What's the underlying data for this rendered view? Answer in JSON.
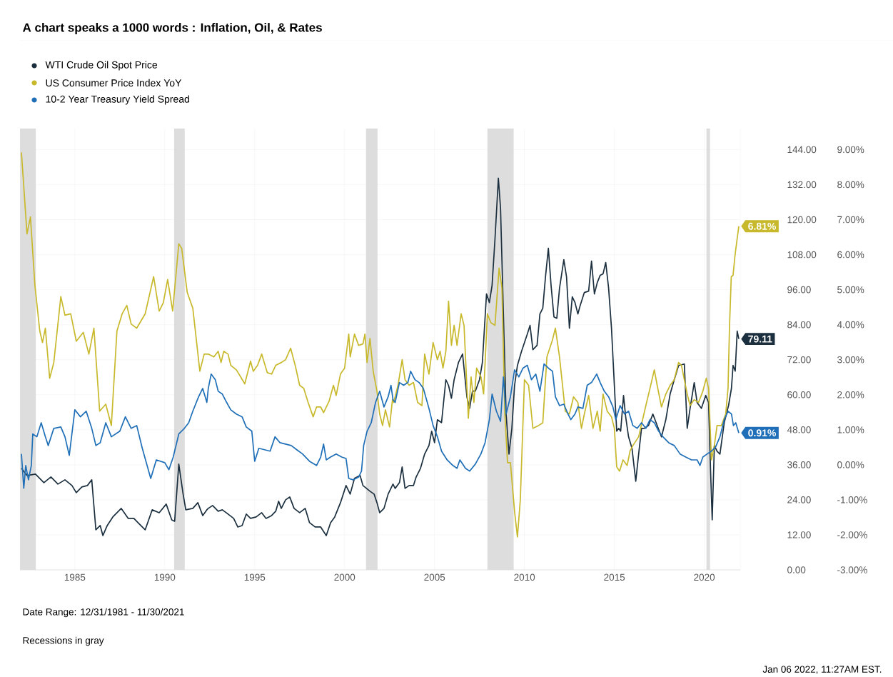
{
  "chart_data": {
    "type": "line",
    "title": "A chart speaks a 1000 words : Inflation, Oil, & Rates",
    "xlim": [
      1981.95,
      2022.0
    ],
    "xticks": [
      1985,
      1990,
      1995,
      2000,
      2005,
      2010,
      2015,
      2020
    ],
    "ylim": [
      0,
      151.2
    ],
    "yticks": [
      {
        "value": 0,
        "label": "0.00"
      },
      {
        "value": 12,
        "label": "12.00"
      },
      {
        "value": 24,
        "label": "24.00"
      },
      {
        "value": 36,
        "label": "36.00"
      },
      {
        "value": 48,
        "label": "48.00"
      },
      {
        "value": 60,
        "label": "60.00"
      },
      {
        "value": 72,
        "label": "72.00"
      },
      {
        "value": 84,
        "label": "84.00"
      },
      {
        "value": 96,
        "label": "96.00"
      },
      {
        "value": 108,
        "label": "108.00"
      },
      {
        "value": 120,
        "label": "120.00"
      },
      {
        "value": 132,
        "label": "132.00"
      },
      {
        "value": 144,
        "label": "144.00"
      }
    ],
    "y2lim": [
      -3,
      9.6
    ],
    "y2ticks": [
      {
        "value": -3,
        "label": "-3.00%"
      },
      {
        "value": -2,
        "label": "-2.00%"
      },
      {
        "value": -1,
        "label": "-1.00%"
      },
      {
        "value": 0,
        "label": "0.00%"
      },
      {
        "value": 1,
        "label": "1.00%"
      },
      {
        "value": 2,
        "label": "2.00%"
      },
      {
        "value": 3,
        "label": "3.00%"
      },
      {
        "value": 4,
        "label": "4.00%"
      },
      {
        "value": 5,
        "label": "5.00%"
      },
      {
        "value": 6,
        "label": "6.00%"
      },
      {
        "value": 7,
        "label": "7.00%"
      },
      {
        "value": 8,
        "label": "8.00%"
      },
      {
        "value": 9,
        "label": "9.00%"
      }
    ],
    "grid": true,
    "legend": "top left",
    "bands": [
      {
        "axis": "x",
        "from": 1981.95,
        "to": 1982.83,
        "color": "#dddddd"
      },
      {
        "axis": "x",
        "from": 1990.52,
        "to": 1991.11,
        "color": "#dddddd"
      },
      {
        "axis": "x",
        "from": 2001.19,
        "to": 2001.83,
        "color": "#dddddd"
      },
      {
        "axis": "x",
        "from": 2007.94,
        "to": 2009.4,
        "color": "#dddddd"
      },
      {
        "axis": "x",
        "from": 2020.12,
        "to": 2020.32,
        "color": "#dddddd"
      }
    ],
    "annotations": [
      "Date Range: 12/31/1981 - 11/30/2021",
      "Recessions in gray",
      "Jan 06 2022, 11:27AM EST."
    ],
    "series": [
      {
        "name": "WTI Crude Oil Spot Price",
        "color": "#1b2f3f",
        "axis": "y",
        "x": [
          1982.03,
          1982.34,
          1982.81,
          1983.28,
          1983.67,
          1984.06,
          1984.45,
          1984.84,
          1985.08,
          1985.39,
          1985.7,
          1985.94,
          1986.17,
          1986.41,
          1986.56,
          1986.8,
          1987.11,
          1987.58,
          1987.97,
          1988.28,
          1988.59,
          1988.91,
          1989.3,
          1989.69,
          1990.08,
          1990.39,
          1990.55,
          1990.78,
          1991.02,
          1991.17,
          1991.56,
          1991.84,
          1992.11,
          1992.34,
          1992.42,
          1992.66,
          1992.97,
          1993.2,
          1993.52,
          1993.83,
          1994.06,
          1994.3,
          1994.53,
          1994.77,
          1995.08,
          1995.39,
          1995.63,
          1995.94,
          1996.17,
          1996.33,
          1996.48,
          1996.72,
          1996.95,
          1997.19,
          1997.5,
          1997.81,
          1998.05,
          1998.36,
          1998.67,
          1998.98,
          1999.22,
          1999.45,
          1999.77,
          2000.08,
          2000.31,
          2000.55,
          2000.86,
          2001.02,
          2001.41,
          2001.64,
          2001.8,
          2001.95,
          2002.19,
          2002.42,
          2002.69,
          2002.81,
          2003.05,
          2003.2,
          2003.36,
          2003.59,
          2003.83,
          2003.98,
          2004.22,
          2004.45,
          2004.69,
          2004.84,
          2005.0,
          2005.16,
          2005.39,
          2005.63,
          2005.78,
          2005.94,
          2006.09,
          2006.33,
          2006.56,
          2006.8,
          2006.95,
          2007.11,
          2007.27,
          2007.5,
          2007.66,
          2007.89,
          2008.05,
          2008.2,
          2008.36,
          2008.55,
          2008.67,
          2008.83,
          2008.98,
          2009.14,
          2009.3,
          2009.45,
          2009.61,
          2009.84,
          2010.0,
          2010.16,
          2010.31,
          2010.47,
          2010.7,
          2010.86,
          2011.02,
          2011.17,
          2011.33,
          2011.48,
          2011.64,
          2011.8,
          2011.95,
          2012.19,
          2012.34,
          2012.5,
          2012.66,
          2012.81,
          2012.97,
          2013.1,
          2013.33,
          2013.57,
          2013.73,
          2013.89,
          2014.05,
          2014.21,
          2014.37,
          2014.52,
          2014.68,
          2014.84,
          2015.0,
          2015.13,
          2015.24,
          2015.35,
          2015.51,
          2015.63,
          2015.79,
          2015.98,
          2016.19,
          2016.35,
          2016.51,
          2016.67,
          2016.9,
          2017.14,
          2017.38,
          2017.62,
          2017.86,
          2018.1,
          2018.33,
          2018.57,
          2018.89,
          2019.05,
          2019.21,
          2019.44,
          2019.6,
          2019.84,
          2020.08,
          2020.24,
          2020.35,
          2020.44,
          2020.56,
          2020.71,
          2020.87,
          2021.11,
          2021.35,
          2021.51,
          2021.6,
          2021.72,
          2021.83,
          2021.92
        ],
        "values": [
          34.78,
          32.33,
          32.82,
          29.88,
          31.84,
          29.39,
          30.86,
          28.9,
          26.45,
          28.41,
          28.9,
          30.86,
          13.71,
          15.18,
          11.76,
          15.18,
          18.12,
          21.06,
          17.63,
          17.63,
          15.67,
          13.71,
          20.57,
          19.59,
          22.53,
          17.14,
          16.65,
          36.25,
          25.96,
          20.57,
          21.06,
          23.02,
          18.61,
          20.57,
          21.06,
          22.04,
          20.08,
          20.57,
          19.1,
          17.63,
          14.69,
          15.18,
          19.1,
          17.63,
          18.12,
          19.59,
          17.63,
          18.61,
          20.08,
          23.51,
          21.06,
          24.0,
          24.98,
          21.06,
          19.59,
          21.06,
          16.16,
          14.69,
          14.69,
          11.76,
          16.16,
          18.12,
          23.02,
          28.9,
          25.96,
          31.35,
          32.33,
          28.9,
          26.94,
          25.96,
          23.02,
          19.59,
          21.06,
          25.96,
          29.39,
          27.92,
          29.88,
          35.27,
          27.92,
          28.9,
          28.9,
          31.84,
          34.78,
          39.67,
          42.61,
          47.51,
          43.59,
          51.43,
          50.45,
          65.14,
          63.18,
          58.78,
          65.14,
          71.02,
          73.96,
          59.27,
          55.35,
          61.23,
          61.23,
          65.14,
          71.02,
          94.53,
          91.59,
          97.47,
          113.14,
          134.2,
          123.92,
          87.67,
          53.39,
          39.67,
          48.49,
          63.18,
          70.04,
          74.94,
          77.88,
          80.82,
          83.76,
          75.43,
          76.9,
          87.67,
          89.63,
          100.41,
          110.2,
          97.47,
          86.69,
          86.2,
          96.49,
          106.29,
          100.41,
          82.78,
          93.55,
          91.59,
          87.67,
          90.61,
          95.02,
          95.51,
          105.8,
          94.53,
          98.45,
          100.9,
          101.39,
          105.31,
          96.49,
          82.78,
          63.18,
          47.51,
          48.49,
          47.51,
          59.76,
          52.41,
          45.55,
          41.63,
          30.37,
          39.67,
          48.49,
          48.49,
          49.47,
          53.39,
          49.47,
          45.55,
          51.43,
          60.24,
          65.14,
          70.04,
          70.53,
          48.49,
          55.35,
          64.16,
          57.31,
          55.35,
          59.76,
          57.31,
          33.8,
          17.14,
          42.61,
          40.65,
          39.67,
          50.45,
          56.33,
          62.2,
          70.04,
          68.08,
          81.8,
          79.11
        ],
        "value_labels": [
          null,
          null,
          null,
          null,
          null,
          null,
          null,
          null,
          null,
          null,
          null,
          null,
          null,
          null,
          null,
          null,
          null,
          null,
          null,
          null,
          null,
          null,
          null,
          null,
          null,
          null,
          null,
          null,
          null,
          null,
          null,
          null,
          null,
          null,
          null,
          null,
          null,
          null,
          null,
          null,
          null,
          null,
          null,
          null,
          null,
          null,
          null,
          null,
          null,
          null,
          null,
          null,
          null,
          null,
          null,
          null,
          null,
          null,
          null,
          null,
          null,
          null,
          null,
          null,
          null,
          null,
          null,
          null,
          null,
          null,
          null,
          null,
          null,
          null,
          null,
          null,
          null,
          null,
          null,
          null,
          null,
          null,
          null,
          null,
          null,
          null,
          null,
          null,
          null,
          null,
          null,
          null,
          null,
          null,
          null,
          null,
          null,
          null,
          null,
          null,
          null,
          null,
          null,
          null,
          null,
          null,
          null,
          null,
          null,
          null,
          null,
          null,
          null,
          null,
          null,
          null,
          null,
          null,
          null,
          null,
          null,
          null,
          null,
          null,
          null,
          null,
          null,
          null,
          null,
          null,
          null,
          null,
          null,
          null,
          null,
          null,
          null,
          null,
          null,
          null,
          null,
          null,
          null,
          null,
          null,
          null,
          null,
          null,
          null,
          null,
          null,
          null,
          null,
          null,
          null,
          null,
          null,
          null,
          null,
          null,
          null,
          null,
          null,
          null,
          null,
          null,
          null,
          null,
          null,
          null,
          null,
          null,
          null,
          null,
          null,
          null,
          null,
          null,
          null,
          null,
          null,
          null,
          null,
          "79.11"
        ]
      },
      {
        "name": "US Consumer Price Index YoY",
        "color": "#c8b92c",
        "axis": "y2",
        "x": [
          1982.03,
          1982.34,
          1982.53,
          1982.78,
          1983.05,
          1983.2,
          1983.36,
          1983.6,
          1983.83,
          1984.22,
          1984.45,
          1984.77,
          1985.08,
          1985.47,
          1985.78,
          1986.06,
          1986.38,
          1986.72,
          1987.03,
          1987.34,
          1987.63,
          1987.89,
          1988.13,
          1988.44,
          1988.91,
          1989.38,
          1989.69,
          1989.92,
          1990.16,
          1990.44,
          1990.78,
          1990.94,
          1991.25,
          1991.56,
          1991.95,
          1992.19,
          1992.42,
          1992.73,
          1992.97,
          1993.13,
          1993.28,
          1993.52,
          1993.67,
          1993.98,
          1994.22,
          1994.45,
          1994.77,
          1994.92,
          1995.16,
          1995.39,
          1995.7,
          1995.94,
          1996.17,
          1996.48,
          1996.72,
          1997.0,
          1997.27,
          1997.5,
          1997.73,
          1997.97,
          1998.25,
          1998.44,
          1998.67,
          1998.83,
          1999.14,
          1999.38,
          1999.53,
          1999.77,
          2000.0,
          2000.23,
          2000.31,
          2000.55,
          2000.78,
          2001.02,
          2001.13,
          2001.25,
          2001.41,
          2001.59,
          2001.8,
          2001.95,
          2002.11,
          2002.27,
          2002.5,
          2002.66,
          2002.73,
          2002.97,
          2003.2,
          2003.36,
          2003.59,
          2003.83,
          2004.06,
          2004.3,
          2004.45,
          2004.69,
          2004.92,
          2005.16,
          2005.31,
          2005.47,
          2005.63,
          2005.78,
          2005.94,
          2006.09,
          2006.25,
          2006.48,
          2006.64,
          2006.88,
          2007.03,
          2007.19,
          2007.34,
          2007.58,
          2007.73,
          2007.94,
          2008.13,
          2008.36,
          2008.59,
          2008.75,
          2008.91,
          2009.06,
          2009.22,
          2009.45,
          2009.61,
          2009.77,
          2010.0,
          2010.23,
          2010.47,
          2010.78,
          2011.02,
          2011.25,
          2011.56,
          2011.72,
          2011.95,
          2012.27,
          2012.5,
          2012.73,
          2012.97,
          2013.17,
          2013.33,
          2013.57,
          2013.81,
          2014.05,
          2014.21,
          2014.37,
          2014.6,
          2014.84,
          2015.0,
          2015.13,
          2015.29,
          2015.48,
          2015.71,
          2015.87,
          2016.03,
          2016.35,
          2016.75,
          2016.98,
          2017.22,
          2017.38,
          2017.62,
          2017.86,
          2018.1,
          2018.33,
          2018.57,
          2018.73,
          2018.89,
          2019.05,
          2019.21,
          2019.44,
          2019.68,
          2019.92,
          2020.11,
          2020.24,
          2020.4,
          2020.56,
          2020.71,
          2020.95,
          2021.19,
          2021.32,
          2021.4,
          2021.5,
          2021.6,
          2021.7,
          2021.8,
          2021.92
        ],
        "values": [
          8.92,
          6.59,
          7.08,
          5.12,
          3.82,
          3.49,
          3.9,
          2.47,
          2.92,
          4.8,
          4.27,
          4.31,
          3.53,
          3.78,
          3.16,
          3.9,
          1.53,
          1.73,
          1.12,
          3.82,
          4.31,
          4.55,
          4.02,
          3.9,
          4.31,
          5.37,
          4.39,
          4.63,
          5.29,
          4.39,
          6.31,
          6.18,
          4.92,
          4.47,
          2.67,
          3.16,
          3.16,
          3.08,
          3.24,
          2.92,
          3.24,
          3.16,
          2.84,
          2.71,
          2.51,
          2.31,
          2.96,
          2.67,
          2.84,
          3.16,
          2.63,
          2.59,
          2.84,
          2.92,
          3.0,
          3.33,
          2.8,
          2.27,
          2.18,
          1.78,
          1.37,
          1.65,
          1.65,
          1.49,
          1.82,
          2.27,
          1.98,
          2.59,
          2.76,
          3.73,
          3.08,
          3.73,
          3.41,
          3.45,
          3.73,
          2.92,
          3.61,
          2.67,
          2.1,
          1.45,
          1.12,
          1.57,
          1.08,
          1.86,
          1.78,
          2.27,
          3.0,
          2.43,
          2.27,
          2.35,
          1.78,
          1.69,
          3.16,
          2.59,
          3.49,
          3.0,
          3.24,
          2.76,
          3.24,
          4.67,
          3.41,
          3.98,
          3.41,
          4.31,
          3.98,
          1.33,
          2.51,
          1.78,
          2.76,
          2.51,
          2.02,
          4.31,
          4.06,
          3.98,
          5.61,
          5.04,
          1.45,
          0.06,
          0.06,
          -1.33,
          -2.06,
          -1.0,
          2.43,
          2.27,
          1.04,
          1.12,
          1.2,
          3.08,
          3.57,
          3.9,
          3.08,
          1.53,
          1.45,
          1.94,
          1.78,
          1.04,
          1.45,
          1.98,
          1.04,
          1.53,
          0.96,
          2.02,
          1.53,
          1.37,
          1.04,
          -0.06,
          -0.18,
          0.14,
          -0.02,
          0.39,
          0.55,
          0.8,
          1.69,
          2.18,
          2.71,
          2.27,
          1.65,
          2.02,
          2.27,
          2.43,
          2.92,
          2.84,
          2.43,
          2.02,
          1.69,
          1.86,
          1.78,
          2.1,
          2.47,
          2.18,
          0.14,
          0.55,
          1.12,
          1.12,
          1.45,
          2.18,
          3.9,
          5.37,
          5.41,
          5.94,
          6.35,
          6.81
        ],
        "value_labels": [
          null,
          null,
          null,
          null,
          null,
          null,
          null,
          null,
          null,
          null,
          null,
          null,
          null,
          null,
          null,
          null,
          null,
          null,
          null,
          null,
          null,
          null,
          null,
          null,
          null,
          null,
          null,
          null,
          null,
          null,
          null,
          null,
          null,
          null,
          null,
          null,
          null,
          null,
          null,
          null,
          null,
          null,
          null,
          null,
          null,
          null,
          null,
          null,
          null,
          null,
          null,
          null,
          null,
          null,
          null,
          null,
          null,
          null,
          null,
          null,
          null,
          null,
          null,
          null,
          null,
          null,
          null,
          null,
          null,
          null,
          null,
          null,
          null,
          null,
          null,
          null,
          null,
          null,
          null,
          null,
          null,
          null,
          null,
          null,
          null,
          null,
          null,
          null,
          null,
          null,
          null,
          null,
          null,
          null,
          null,
          null,
          null,
          null,
          null,
          null,
          null,
          null,
          null,
          null,
          null,
          null,
          null,
          null,
          null,
          null,
          null,
          null,
          null,
          null,
          null,
          null,
          null,
          null,
          null,
          null,
          null,
          null,
          null,
          null,
          null,
          null,
          null,
          null,
          null,
          null,
          null,
          null,
          null,
          null,
          null,
          null,
          null,
          null,
          null,
          null,
          null,
          null,
          null,
          null,
          null,
          null,
          null,
          null,
          null,
          null,
          null,
          null,
          null,
          null,
          null,
          null,
          null,
          null,
          null,
          null,
          null,
          null,
          null,
          null,
          null,
          null,
          null,
          null,
          null,
          null,
          null,
          null,
          null,
          null,
          null,
          null,
          null,
          null,
          null,
          null,
          null,
          "6.81%"
        ]
      },
      {
        "name": "10-2 Year Treasury Yield Spread",
        "color": "#1f6fb8",
        "axis": "y2",
        "x": [
          1982.03,
          1982.16,
          1982.27,
          1982.42,
          1982.58,
          1982.66,
          1982.89,
          1983.13,
          1983.36,
          1983.52,
          1983.83,
          1984.22,
          1984.45,
          1984.69,
          1985.0,
          1985.31,
          1985.63,
          1985.94,
          1986.17,
          1986.41,
          1986.72,
          1987.03,
          1987.5,
          1987.81,
          1988.13,
          1988.44,
          1988.75,
          1989.22,
          1989.53,
          1990.0,
          1990.23,
          1990.47,
          1990.78,
          1991.09,
          1991.33,
          1991.56,
          1991.88,
          1992.11,
          1992.34,
          1992.42,
          1992.58,
          1992.81,
          1992.97,
          1993.2,
          1993.44,
          1993.67,
          1993.98,
          1994.3,
          1994.53,
          1994.84,
          1995.0,
          1995.23,
          1995.55,
          1995.86,
          1996.13,
          1996.41,
          1996.72,
          1997.03,
          1997.34,
          1997.66,
          1998.05,
          1998.44,
          1998.67,
          1998.83,
          1998.98,
          1999.22,
          1999.53,
          1999.84,
          2000.08,
          2000.23,
          2000.47,
          2000.78,
          2000.94,
          2001.06,
          2001.25,
          2001.48,
          2001.72,
          2001.95,
          2002.19,
          2002.42,
          2002.58,
          2002.69,
          2002.81,
          2003.05,
          2003.28,
          2003.52,
          2003.67,
          2003.91,
          2004.14,
          2004.38,
          2004.69,
          2004.92,
          2005.16,
          2005.39,
          2005.7,
          2006.02,
          2006.25,
          2006.41,
          2006.72,
          2006.95,
          2007.27,
          2007.58,
          2007.81,
          2008.05,
          2008.2,
          2008.44,
          2008.67,
          2008.83,
          2008.98,
          2009.22,
          2009.45,
          2009.69,
          2009.92,
          2010.16,
          2010.39,
          2010.63,
          2010.86,
          2011.09,
          2011.33,
          2011.56,
          2011.72,
          2011.95,
          2012.19,
          2012.42,
          2012.58,
          2012.81,
          2012.97,
          2013.25,
          2013.49,
          2013.73,
          2014.02,
          2014.21,
          2014.44,
          2014.68,
          2014.92,
          2015.08,
          2015.32,
          2015.56,
          2015.79,
          2016.03,
          2016.27,
          2016.51,
          2016.75,
          2016.98,
          2017.22,
          2017.46,
          2017.7,
          2018.02,
          2018.33,
          2018.65,
          2018.97,
          2019.29,
          2019.6,
          2019.76,
          2019.92,
          2020.16,
          2020.4,
          2020.63,
          2020.87,
          2021.11,
          2021.32,
          2021.51,
          2021.62,
          2021.75,
          2021.92
        ],
        "values": [
          0.31,
          -0.67,
          -0.02,
          -0.43,
          -0.02,
          0.88,
          0.8,
          1.2,
          0.8,
          0.55,
          1.04,
          1.08,
          0.8,
          0.27,
          1.57,
          1.37,
          1.53,
          1.04,
          0.55,
          0.63,
          1.2,
          0.8,
          0.96,
          1.37,
          1.04,
          1.12,
          0.47,
          -0.39,
          0.14,
          0.06,
          -0.14,
          0.22,
          0.88,
          1.04,
          1.2,
          1.53,
          1.94,
          2.18,
          1.78,
          2.18,
          2.59,
          2.43,
          2.1,
          2.02,
          1.78,
          1.57,
          1.45,
          1.37,
          1.08,
          0.96,
          0.1,
          0.47,
          0.43,
          0.39,
          0.8,
          0.63,
          0.59,
          0.55,
          0.43,
          0.31,
          0.1,
          -0.02,
          0.22,
          0.59,
          0.14,
          0.22,
          0.31,
          0.22,
          0.18,
          -0.39,
          -0.43,
          -0.35,
          -0.18,
          0.55,
          0.96,
          1.2,
          1.78,
          2.1,
          1.65,
          1.94,
          2.27,
          1.86,
          1.78,
          2.35,
          2.27,
          2.35,
          2.67,
          2.43,
          2.35,
          2.18,
          1.61,
          1.12,
          0.8,
          0.39,
          0.14,
          -0.02,
          -0.1,
          0.14,
          -0.1,
          -0.18,
          0.02,
          0.31,
          0.63,
          1.29,
          2.02,
          1.53,
          1.24,
          2.51,
          1.45,
          1.94,
          2.71,
          2.51,
          2.76,
          2.84,
          2.43,
          2.59,
          2.1,
          2.88,
          2.76,
          2.67,
          1.94,
          1.69,
          1.73,
          1.45,
          1.29,
          1.45,
          1.65,
          1.61,
          2.27,
          2.35,
          2.59,
          2.35,
          2.1,
          1.94,
          1.65,
          1.29,
          1.69,
          1.45,
          1.53,
          1.12,
          1.04,
          1.2,
          1.04,
          1.29,
          1.2,
          0.96,
          0.8,
          0.63,
          0.55,
          0.31,
          0.22,
          0.14,
          0.14,
          -0.02,
          0.22,
          0.31,
          0.39,
          0.51,
          0.8,
          1.29,
          1.53,
          1.45,
          1.12,
          1.2,
          0.91
        ],
        "value_labels": [
          null,
          null,
          null,
          null,
          null,
          null,
          null,
          null,
          null,
          null,
          null,
          null,
          null,
          null,
          null,
          null,
          null,
          null,
          null,
          null,
          null,
          null,
          null,
          null,
          null,
          null,
          null,
          null,
          null,
          null,
          null,
          null,
          null,
          null,
          null,
          null,
          null,
          null,
          null,
          null,
          null,
          null,
          null,
          null,
          null,
          null,
          null,
          null,
          null,
          null,
          null,
          null,
          null,
          null,
          null,
          null,
          null,
          null,
          null,
          null,
          null,
          null,
          null,
          null,
          null,
          null,
          null,
          null,
          null,
          null,
          null,
          null,
          null,
          null,
          null,
          null,
          null,
          null,
          null,
          null,
          null,
          null,
          null,
          null,
          null,
          null,
          null,
          null,
          null,
          null,
          null,
          null,
          null,
          null,
          null,
          null,
          null,
          null,
          null,
          null,
          null,
          null,
          null,
          null,
          null,
          null,
          null,
          null,
          null,
          null,
          null,
          null,
          null,
          null,
          null,
          null,
          null,
          null,
          null,
          null,
          null,
          null,
          null,
          null,
          null,
          null,
          null,
          null,
          null,
          null,
          null,
          null,
          null,
          null,
          null,
          null,
          null,
          null,
          null,
          null,
          null,
          null,
          null,
          null,
          null,
          null,
          null,
          null,
          null,
          null,
          null,
          null,
          null,
          null,
          null,
          null,
          null,
          null,
          null,
          null,
          null,
          null,
          null,
          null,
          "0.91%"
        ]
      }
    ]
  }
}
